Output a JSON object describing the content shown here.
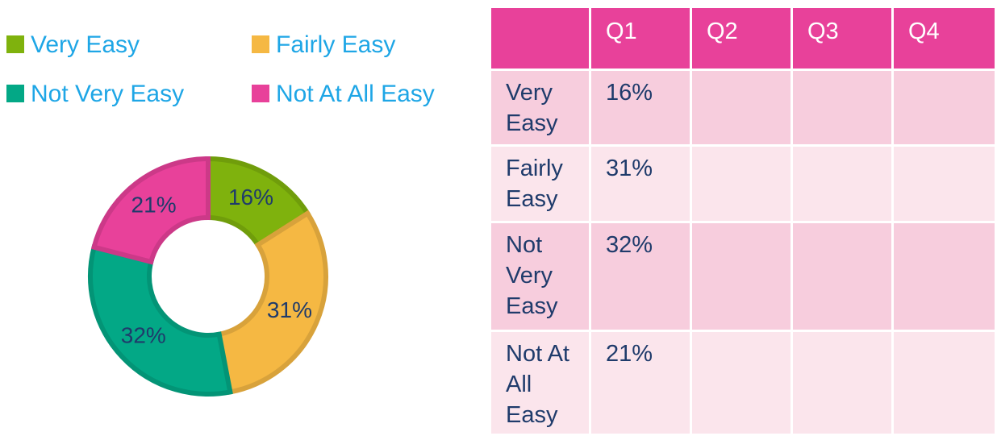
{
  "chart_data": {
    "type": "donut",
    "categories": [
      "Very Easy",
      "Fairly Easy",
      "Not Very Easy",
      "Not At All Easy"
    ],
    "values": [
      16,
      31,
      32,
      21
    ],
    "value_labels": [
      "16%",
      "31%",
      "32%",
      "21%"
    ],
    "colors": [
      "#7fb20d",
      "#f5b843",
      "#03a886",
      "#e8419a"
    ],
    "legend": "top"
  },
  "table": {
    "header": [
      "Q1",
      "Q2",
      "Q3",
      "Q4"
    ],
    "rows": [
      {
        "label": "Very Easy",
        "cells": [
          "16%"
        ]
      },
      {
        "label": "Fairly Easy",
        "cells": [
          "31%"
        ]
      },
      {
        "label": "Not Very Easy",
        "cells": [
          "32%"
        ]
      },
      {
        "label": "Not At All Easy",
        "cells": [
          "21%"
        ]
      }
    ]
  }
}
